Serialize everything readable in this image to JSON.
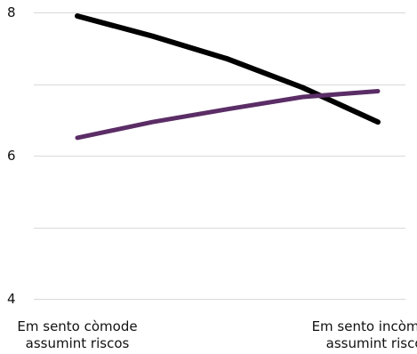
{
  "chart_data": {
    "type": "line",
    "x": [
      0,
      1,
      2,
      3,
      4,
      5
    ],
    "categories": [
      {
        "line1": "Em sento còmode",
        "line2": "assumint riscos"
      },
      {
        "line1": "",
        "line2": ""
      },
      {
        "line1": "",
        "line2": ""
      },
      {
        "line1": "",
        "line2": ""
      },
      {
        "line1": "",
        "line2": ""
      },
      {
        "line1": "Em sento incòmode",
        "line2": "assumint riscos"
      }
    ],
    "series": [
      {
        "values": [
          7.95,
          7.67,
          7.35,
          6.95,
          6.47
        ],
        "x": [
          0,
          1.25,
          2.5,
          3.75,
          5
        ],
        "color": "#000000"
      },
      {
        "values": [
          6.25,
          6.47,
          6.65,
          6.82,
          6.9
        ],
        "x": [
          0,
          1.25,
          2.5,
          3.75,
          5
        ],
        "color": "#5b2d66"
      }
    ],
    "yticks": [
      4,
      6,
      8
    ],
    "ylim": [
      4,
      8
    ],
    "xlim": [
      0,
      5
    ],
    "grid": true,
    "title": "",
    "xlabel": "",
    "ylabel": ""
  }
}
